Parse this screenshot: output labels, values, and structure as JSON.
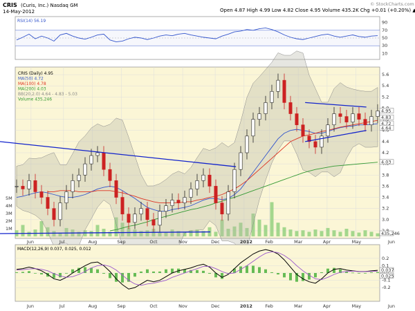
{
  "header": {
    "symbol": "CRIS",
    "company": "(Curis, Inc.) Nasdaq GM",
    "date": "14-May-2012",
    "ohlc": "Open 4.87  High 4.99  Low 4.82  Close 4.95  Volume 435.2K  Chg +0.01 (+0.20%) ▲",
    "watermark": "© StockCharts.com"
  },
  "rsi_panel": {
    "label": "RSI(14) 56.19",
    "levels": [
      "90",
      "70",
      "50",
      "30",
      "10"
    ],
    "current_value": "56.19"
  },
  "price_panel": {
    "legend": [
      {
        "text": "CRIS (Daily) 4.95",
        "color": "#000000"
      },
      {
        "text": "MA(50) 4.72",
        "color": "#3355cc"
      },
      {
        "text": "MA(100) 4.78",
        "color": "#dd3322"
      },
      {
        "text": "MA(200) 4.03",
        "color": "#339933"
      },
      {
        "text": "BB(20,2.0) 4.64 - 4.83 - 5.03",
        "color": "#888888"
      },
      {
        "text": "Volume 435,246",
        "color": "#339933"
      }
    ],
    "volume_ticks": [
      "5M",
      "4M",
      "3M",
      "2M",
      "1M"
    ],
    "right_badges": [
      "4.95",
      "4.83",
      "4.72",
      "4.64",
      "4.03",
      "435,246"
    ]
  },
  "macd_panel": {
    "label": "MACD(12,26,9) 0.037, 0.025, 0.012",
    "ticks": [
      "0.2",
      "0.1",
      "0.0",
      "-0.1",
      "-0.2"
    ],
    "badges": [
      "0.037",
      "0.025"
    ]
  },
  "chart_data": {
    "type": "line",
    "x_labels": [
      "Jun",
      "Jul",
      "Aug",
      "Sep",
      "Oct",
      "Nov",
      "Dec",
      "2012",
      "Feb",
      "Mar",
      "Apr",
      "May",
      "Jun"
    ],
    "y_ticks": [
      "5.6",
      "5.4",
      "5.2",
      "5.0",
      "4.8",
      "4.6",
      "4.4",
      "4.2",
      "4.0",
      "3.8",
      "3.6",
      "3.4",
      "3.2",
      "3.0",
      "2.8"
    ],
    "ylim": [
      2.7,
      5.7
    ],
    "close": [
      3.6,
      3.55,
      3.7,
      3.5,
      3.4,
      3.2,
      3.0,
      3.3,
      3.5,
      3.7,
      3.8,
      4.0,
      4.15,
      4.2,
      3.9,
      3.7,
      3.4,
      3.1,
      2.95,
      3.1,
      3.2,
      3.0,
      2.9,
      3.15,
      3.25,
      3.35,
      3.3,
      3.4,
      3.55,
      3.7,
      3.8,
      3.6,
      3.3,
      3.1,
      3.5,
      3.9,
      4.2,
      4.5,
      4.8,
      4.9,
      5.1,
      5.3,
      5.5,
      5.1,
      4.9,
      4.7,
      4.5,
      4.4,
      4.3,
      4.5,
      4.7,
      4.9,
      4.85,
      4.75,
      4.9,
      4.8,
      4.7,
      4.85,
      4.95
    ],
    "series": [
      {
        "name": "MA(50)",
        "values": [
          3.4,
          3.42,
          3.45,
          3.48,
          3.5,
          3.48,
          3.45,
          3.42,
          3.4,
          3.4,
          3.42,
          3.45,
          3.5,
          3.55,
          3.58,
          3.6,
          3.58,
          3.52,
          3.45,
          3.38,
          3.3,
          3.22,
          3.18,
          3.15,
          3.15,
          3.18,
          3.2,
          3.22,
          3.25,
          3.3,
          3.35,
          3.38,
          3.38,
          3.36,
          3.38,
          3.45,
          3.55,
          3.7,
          3.85,
          4.0,
          4.15,
          4.3,
          4.45,
          4.55,
          4.6,
          4.62,
          4.6,
          4.58,
          4.55,
          4.55,
          4.58,
          4.62,
          4.65,
          4.67,
          4.68,
          4.7,
          4.7,
          4.71,
          4.72
        ]
      },
      {
        "name": "MA(100)",
        "values": [
          null,
          null,
          null,
          null,
          null,
          3.5,
          3.5,
          3.52,
          3.52,
          3.52,
          3.5,
          3.5,
          3.5,
          3.52,
          3.52,
          3.52,
          3.5,
          3.48,
          3.45,
          3.42,
          3.38,
          3.35,
          3.32,
          3.3,
          3.3,
          3.3,
          3.3,
          3.32,
          3.32,
          3.35,
          3.37,
          3.4,
          3.42,
          3.45,
          3.5,
          3.55,
          3.62,
          3.7,
          3.8,
          3.9,
          4.0,
          4.1,
          4.2,
          4.3,
          4.4,
          4.45,
          4.5,
          4.52,
          4.55,
          4.58,
          4.6,
          4.63,
          4.66,
          4.68,
          4.7,
          4.72,
          4.74,
          4.76,
          4.78
        ]
      },
      {
        "name": "MA(200)",
        "values": [
          null,
          null,
          null,
          null,
          null,
          null,
          null,
          null,
          null,
          null,
          null,
          null,
          null,
          null,
          null,
          2.8,
          2.82,
          2.85,
          2.88,
          2.9,
          2.93,
          2.96,
          3.0,
          3.03,
          3.06,
          3.09,
          3.12,
          3.15,
          3.18,
          3.2,
          3.23,
          3.26,
          3.3,
          3.33,
          3.37,
          3.4,
          3.44,
          3.48,
          3.52,
          3.56,
          3.6,
          3.64,
          3.68,
          3.72,
          3.76,
          3.8,
          3.84,
          3.87,
          3.9,
          3.92,
          3.94,
          3.96,
          3.97,
          3.98,
          3.99,
          4.0,
          4.01,
          4.02,
          4.03
        ]
      }
    ],
    "rsi": [
      45,
      52,
      60,
      48,
      55,
      50,
      42,
      58,
      62,
      55,
      50,
      47,
      52,
      58,
      60,
      45,
      40,
      42,
      48,
      52,
      50,
      46,
      50,
      55,
      58,
      56,
      60,
      62,
      58,
      55,
      52,
      50,
      48,
      55,
      60,
      66,
      68,
      72,
      70,
      74,
      76,
      72,
      66,
      58,
      52,
      48,
      46,
      50,
      54,
      58,
      60,
      55,
      52,
      55,
      58,
      54,
      52,
      55,
      56.19
    ],
    "macd": [
      0.05,
      0.06,
      0.08,
      0.06,
      0.03,
      -0.02,
      -0.08,
      -0.1,
      -0.06,
      0.0,
      0.05,
      0.1,
      0.14,
      0.15,
      0.1,
      0.02,
      -0.08,
      -0.16,
      -0.22,
      -0.2,
      -0.15,
      -0.1,
      -0.12,
      -0.1,
      -0.05,
      0.0,
      0.03,
      0.05,
      0.07,
      0.1,
      0.12,
      0.08,
      0.0,
      -0.06,
      -0.02,
      0.06,
      0.14,
      0.2,
      0.26,
      0.3,
      0.32,
      0.3,
      0.26,
      0.18,
      0.08,
      -0.02,
      -0.08,
      -0.12,
      -0.14,
      -0.08,
      0.0,
      0.05,
      0.06,
      0.04,
      0.03,
      0.02,
      0.02,
      0.03,
      0.037
    ],
    "macd_signal": [
      0.04,
      0.045,
      0.055,
      0.06,
      0.05,
      0.03,
      -0.01,
      -0.04,
      -0.06,
      -0.05,
      -0.02,
      0.02,
      0.07,
      0.1,
      0.11,
      0.09,
      0.04,
      -0.03,
      -0.1,
      -0.15,
      -0.17,
      -0.15,
      -0.14,
      -0.12,
      -0.1,
      -0.06,
      -0.03,
      0.0,
      0.03,
      0.06,
      0.09,
      0.09,
      0.06,
      0.02,
      -0.01,
      0.0,
      0.05,
      0.1,
      0.16,
      0.22,
      0.27,
      0.29,
      0.28,
      0.24,
      0.18,
      0.1,
      0.03,
      -0.03,
      -0.08,
      -0.09,
      -0.06,
      -0.02,
      0.01,
      0.02,
      0.025,
      0.02,
      0.02,
      0.022,
      0.025
    ],
    "volume": [
      0.8,
      1.5,
      0.6,
      0.9,
      2.0,
      1.2,
      0.7,
      0.5,
      1.1,
      0.9,
      0.6,
      0.8,
      0.7,
      1.5,
      1.0,
      0.6,
      2.5,
      1.8,
      1.2,
      0.9,
      0.7,
      0.8,
      1.0,
      0.6,
      0.5,
      0.9,
      0.7,
      0.6,
      0.8,
      0.9,
      0.7,
      1.2,
      0.6,
      2.2,
      1.0,
      1.3,
      1.8,
      1.1,
      3.0,
      2.2,
      1.5,
      4.5,
      1.8,
      1.2,
      0.9,
      0.7,
      0.8,
      0.6,
      0.9,
      0.7,
      1.1,
      0.8,
      0.6,
      1.0,
      0.7,
      0.5,
      0.8,
      0.6,
      0.4
    ],
    "trendlines": [
      {
        "name": "resistance-upper",
        "from": [
          "Jul",
          4.4
        ],
        "to": [
          "Jan",
          3.95
        ]
      },
      {
        "name": "support-lower",
        "from": [
          "Jun",
          2.75
        ],
        "to": [
          "Jan",
          2.78
        ]
      },
      {
        "name": "wedge-top",
        "from": [
          "Apr",
          5.1
        ],
        "to": [
          "May",
          5.02
        ]
      },
      {
        "name": "wedge-bottom",
        "from": [
          "Apr",
          4.4
        ],
        "to": [
          "May",
          4.6
        ]
      }
    ],
    "grid": true,
    "legend_position": "top-left"
  }
}
